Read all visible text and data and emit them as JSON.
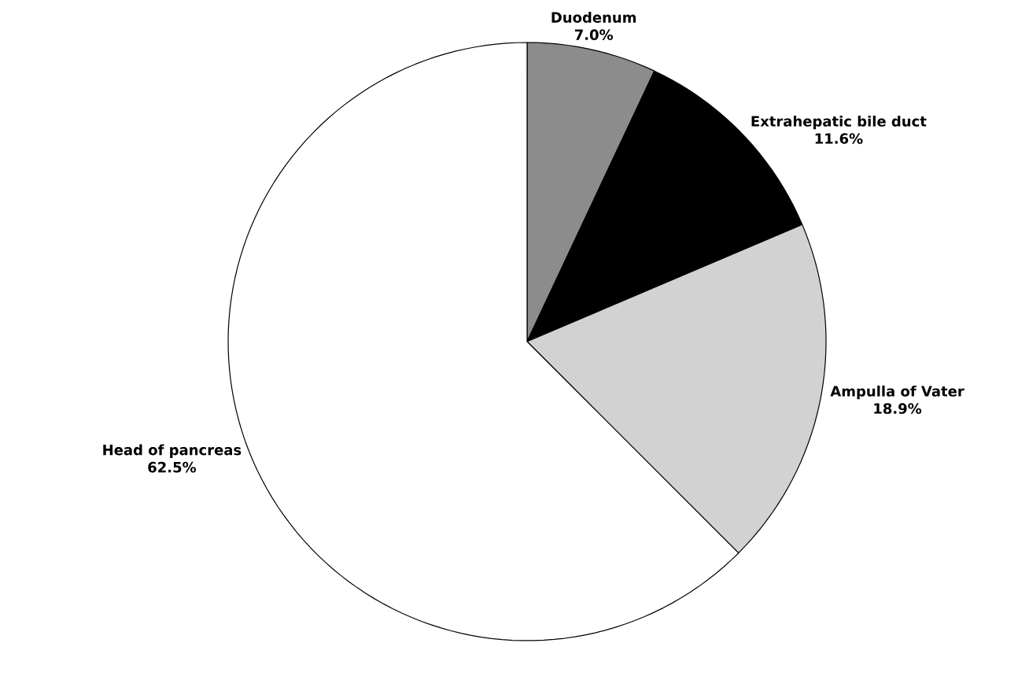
{
  "chart_data": {
    "type": "pie",
    "categories": [
      "Duodenum",
      "Extrahepatic bile duct",
      "Ampulla of Vater",
      "Head of pancreas"
    ],
    "values": [
      7.0,
      11.6,
      18.9,
      62.5
    ],
    "value_labels": [
      "7.0%",
      "11.6%",
      "18.9%",
      "62.5%"
    ],
    "colors": [
      "#8c8c8c",
      "#000000",
      "#d2d2d2",
      "#ffffff"
    ]
  }
}
